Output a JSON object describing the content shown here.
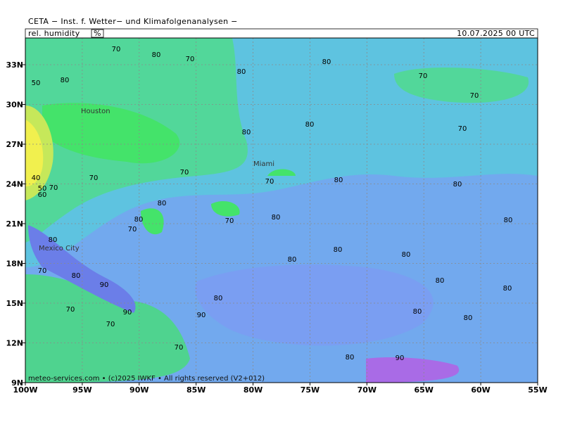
{
  "header": {
    "title": "CETA − Inst. f. Wetter− und Klimafolgenanalysen −",
    "variable": "rel. humidity",
    "unit": "%",
    "datetime": "10.07.2025 00 UTC"
  },
  "axes": {
    "x_labels": [
      "100W",
      "95W",
      "90W",
      "85W",
      "80W",
      "75W",
      "70W",
      "65W",
      "60W",
      "55W"
    ],
    "y_labels": [
      "9N",
      "12N",
      "15N",
      "18N",
      "21N",
      "24N",
      "27N",
      "30N",
      "33N"
    ]
  },
  "cities": [
    "Houston",
    "Miami",
    "Mexico City"
  ],
  "contour_labels": [
    "70",
    "80",
    "70",
    "80",
    "80",
    "70",
    "70",
    "80",
    "70",
    "80",
    "70",
    "70",
    "80",
    "80",
    "80",
    "70",
    "80",
    "80",
    "80",
    "70",
    "80",
    "80",
    "80",
    "80",
    "80",
    "80",
    "90",
    "80",
    "70",
    "70",
    "90",
    "90",
    "80",
    "80",
    "80",
    "70",
    "70",
    "80",
    "90",
    "50",
    "80",
    "40",
    "50",
    "70",
    "70",
    "60"
  ],
  "footer": "meteo-services.com • (c)2025 IWKF • All rights reserved (V2+012)"
}
